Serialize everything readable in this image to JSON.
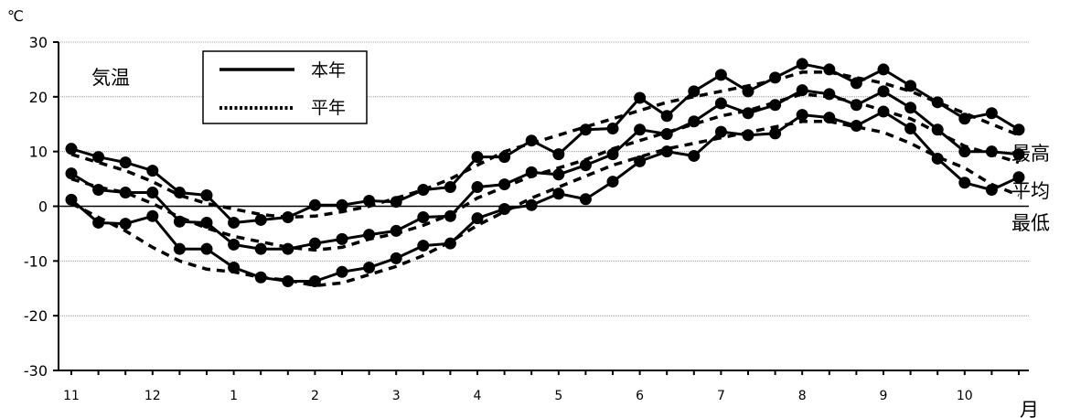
{
  "chart_data": {
    "type": "line",
    "title": "気温",
    "ylabel": "℃",
    "xlabel": "月",
    "ylim": [
      -30,
      30
    ],
    "yticks": [
      30,
      20,
      10,
      0,
      -10,
      -20,
      -30
    ],
    "ytick_labels": [
      "30",
      "20",
      "10",
      "0",
      "-10",
      "-20",
      "-30"
    ],
    "xtick_labels": [
      "11",
      "12",
      "1",
      "2",
      "3",
      "4",
      "5",
      "6",
      "7",
      "8",
      "9",
      "10"
    ],
    "grid": true,
    "legend": {
      "position": "top-left",
      "entries": [
        {
          "label": "本年",
          "style": "solid"
        },
        {
          "label": "平年",
          "style": "dotted"
        }
      ]
    },
    "series_end_labels": [
      "最高",
      "平均",
      "最低"
    ],
    "series": [
      {
        "name": "最高 本年",
        "style": "solid",
        "markers": true,
        "values": [
          10.5,
          9,
          8,
          6.5,
          2.5,
          2,
          -3,
          -2.5,
          -2,
          0.2,
          0.2,
          1,
          0.8,
          3,
          3.5,
          9,
          9,
          12,
          9.5,
          14,
          14.2,
          19.8,
          16.5,
          21,
          24,
          21,
          23.5,
          26,
          25,
          22.5,
          25,
          22,
          19,
          16,
          17,
          14
        ]
      },
      {
        "name": "平均 本年",
        "style": "solid",
        "markers": true,
        "values": [
          6,
          3,
          2.5,
          2.5,
          -2.8,
          -3,
          -7,
          -7.8,
          -7.8,
          -6.8,
          -6,
          -5.2,
          -4.5,
          -2,
          -1.8,
          3.5,
          4,
          6.2,
          5.8,
          7.5,
          9.5,
          14,
          13.2,
          15.5,
          18.8,
          17,
          18.5,
          21.2,
          20.5,
          18.5,
          21,
          18,
          14,
          10,
          10,
          9.5
        ]
      },
      {
        "name": "最低 本年",
        "style": "solid",
        "markers": true,
        "values": [
          1.2,
          -3,
          -3.2,
          -1.8,
          -7.8,
          -7.8,
          -11.2,
          -13,
          -13.7,
          -13.7,
          -12,
          -11.2,
          -9.5,
          -7.2,
          -6.8,
          -2.2,
          -0.5,
          0.2,
          2.3,
          1.3,
          4.5,
          8.2,
          10,
          9.2,
          13.6,
          13,
          13.3,
          16.7,
          16.2,
          14.7,
          17.3,
          14.2,
          8.7,
          4.3,
          3,
          5.3
        ]
      },
      {
        "name": "最高 平年",
        "style": "dotted",
        "markers": false,
        "values": [
          9.5,
          8,
          6.5,
          4.5,
          2,
          0.5,
          -0.5,
          -1.5,
          -2,
          -1.8,
          -1,
          0,
          1.5,
          3,
          5,
          7.5,
          10,
          11.5,
          13,
          14.5,
          16,
          17.5,
          19,
          20,
          21,
          22,
          23,
          24.5,
          24.5,
          23.5,
          22.5,
          21,
          19,
          17,
          15,
          13
        ]
      },
      {
        "name": "平均 平年",
        "style": "dotted",
        "markers": false,
        "values": [
          5,
          3.5,
          2.5,
          0.5,
          -2,
          -4,
          -5.5,
          -6.5,
          -7.5,
          -8,
          -7.5,
          -6,
          -5,
          -3.5,
          -1.5,
          1.5,
          3.5,
          5.5,
          7,
          8.5,
          10.5,
          12,
          13.5,
          15,
          16.5,
          17.5,
          19,
          20.5,
          20,
          19,
          17.5,
          16,
          13.5,
          11,
          9.5,
          8
        ]
      },
      {
        "name": "最低 平年",
        "style": "dotted",
        "markers": false,
        "values": [
          0.5,
          -2,
          -4.5,
          -7.5,
          -10,
          -11.5,
          -12,
          -13,
          -13.5,
          -14.5,
          -14,
          -12.5,
          -11,
          -9,
          -6.5,
          -3.5,
          -1,
          1.5,
          3.5,
          5.5,
          7.5,
          9,
          10.5,
          11.5,
          12.5,
          13.5,
          14.5,
          15.5,
          15.5,
          14.5,
          13.5,
          11.5,
          9,
          7,
          4,
          2
        ]
      }
    ]
  }
}
